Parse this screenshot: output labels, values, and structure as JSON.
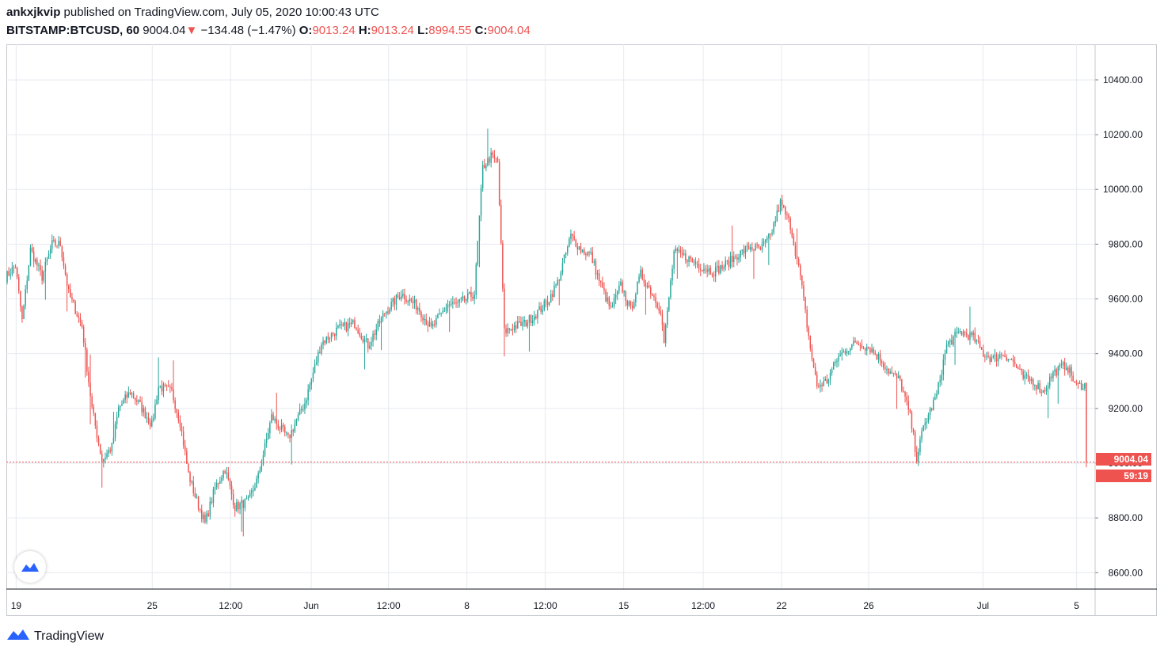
{
  "header": {
    "author": "ankxjkvip",
    "published_text": "published on TradingView.com, July 05, 2020 10:00:43 UTC",
    "symbol": "BITSTAMP:BTCUSD, 60",
    "last_price": "9004.04",
    "change": "−134.48 (−1.47%)",
    "open_label": "O:",
    "open": "9013.24",
    "high_label": "H:",
    "high": "9013.24",
    "low_label": "L:",
    "low": "8994.55",
    "close_label": "C:",
    "close": "9004.04"
  },
  "price_tag": {
    "price": "9004.04",
    "countdown": "59:19"
  },
  "footer": {
    "brand": "TradingView"
  },
  "colors": {
    "up": "#26a69a",
    "down": "#ef5350",
    "grid": "#e6e9ef",
    "axis": "#787b86",
    "price_line": "#ef5350"
  },
  "chart_data": {
    "type": "candlestick",
    "title": "BITSTAMP:BTCUSD, 60",
    "ylim": [
      8540,
      10530
    ],
    "y_ticks": [
      8600,
      8800,
      9000,
      9200,
      9400,
      9600,
      9800,
      10000,
      10200,
      10400
    ],
    "y_tick_labels": [
      "8600.00",
      "8800.00",
      "9000.00",
      "9200.00",
      "9400.00",
      "9600.00",
      "9800.00",
      "10000.00",
      "10200.00",
      "10400.00"
    ],
    "x_ticks": [
      {
        "label": "19",
        "pos": 0.009
      },
      {
        "label": "25",
        "pos": 0.134
      },
      {
        "label": "12:00",
        "pos": 0.206
      },
      {
        "label": "Jun",
        "pos": 0.28
      },
      {
        "label": "12:00",
        "pos": 0.351
      },
      {
        "label": "8",
        "pos": 0.423
      },
      {
        "label": "12:00",
        "pos": 0.495
      },
      {
        "label": "15",
        "pos": 0.567
      },
      {
        "label": "12:00",
        "pos": 0.64
      },
      {
        "label": "22",
        "pos": 0.712
      },
      {
        "label": "26",
        "pos": 0.792
      },
      {
        "label": "Jul",
        "pos": 0.897
      },
      {
        "label": "5",
        "pos": 0.983
      }
    ],
    "current_price": 9004.04,
    "candle_count": 650,
    "anchors": [
      [
        0,
        9680
      ],
      [
        6,
        9720
      ],
      [
        10,
        9520
      ],
      [
        15,
        9780
      ],
      [
        22,
        9680
      ],
      [
        28,
        9800
      ],
      [
        33,
        9800
      ],
      [
        38,
        9620
      ],
      [
        46,
        9500
      ],
      [
        52,
        9200
      ],
      [
        58,
        9010
      ],
      [
        64,
        9060
      ],
      [
        68,
        9200
      ],
      [
        75,
        9260
      ],
      [
        80,
        9220
      ],
      [
        88,
        9140
      ],
      [
        92,
        9280
      ],
      [
        100,
        9260
      ],
      [
        105,
        9150
      ],
      [
        110,
        8960
      ],
      [
        114,
        8880
      ],
      [
        120,
        8780
      ],
      [
        126,
        8910
      ],
      [
        132,
        8980
      ],
      [
        138,
        8840
      ],
      [
        146,
        8860
      ],
      [
        152,
        8950
      ],
      [
        160,
        9170
      ],
      [
        170,
        9090
      ],
      [
        180,
        9220
      ],
      [
        190,
        9440
      ],
      [
        200,
        9490
      ],
      [
        210,
        9510
      ],
      [
        218,
        9430
      ],
      [
        228,
        9550
      ],
      [
        238,
        9620
      ],
      [
        248,
        9570
      ],
      [
        256,
        9490
      ],
      [
        266,
        9580
      ],
      [
        272,
        9580
      ],
      [
        282,
        9620
      ],
      [
        287,
        10080
      ],
      [
        292,
        10120
      ],
      [
        296,
        10100
      ],
      [
        300,
        9480
      ],
      [
        306,
        9500
      ],
      [
        312,
        9510
      ],
      [
        318,
        9540
      ],
      [
        326,
        9590
      ],
      [
        332,
        9660
      ],
      [
        340,
        9830
      ],
      [
        346,
        9780
      ],
      [
        352,
        9760
      ],
      [
        358,
        9650
      ],
      [
        364,
        9560
      ],
      [
        370,
        9650
      ],
      [
        376,
        9560
      ],
      [
        382,
        9690
      ],
      [
        388,
        9630
      ],
      [
        394,
        9560
      ],
      [
        396,
        9440
      ],
      [
        402,
        9770
      ],
      [
        410,
        9750
      ],
      [
        418,
        9720
      ],
      [
        426,
        9700
      ],
      [
        432,
        9720
      ],
      [
        440,
        9760
      ],
      [
        448,
        9790
      ],
      [
        454,
        9780
      ],
      [
        460,
        9830
      ],
      [
        466,
        9950
      ],
      [
        472,
        9870
      ],
      [
        478,
        9680
      ],
      [
        484,
        9420
      ],
      [
        488,
        9280
      ],
      [
        494,
        9300
      ],
      [
        500,
        9380
      ],
      [
        506,
        9420
      ],
      [
        512,
        9440
      ],
      [
        520,
        9420
      ],
      [
        526,
        9380
      ],
      [
        532,
        9330
      ],
      [
        538,
        9300
      ],
      [
        544,
        9170
      ],
      [
        548,
        9020
      ],
      [
        552,
        9130
      ],
      [
        560,
        9250
      ],
      [
        566,
        9430
      ],
      [
        574,
        9480
      ],
      [
        582,
        9460
      ],
      [
        588,
        9400
      ],
      [
        594,
        9380
      ],
      [
        600,
        9400
      ],
      [
        606,
        9370
      ],
      [
        612,
        9310
      ],
      [
        618,
        9300
      ],
      [
        624,
        9260
      ],
      [
        630,
        9330
      ],
      [
        638,
        9360
      ],
      [
        644,
        9280
      ],
      [
        650,
        9290
      ]
    ]
  }
}
